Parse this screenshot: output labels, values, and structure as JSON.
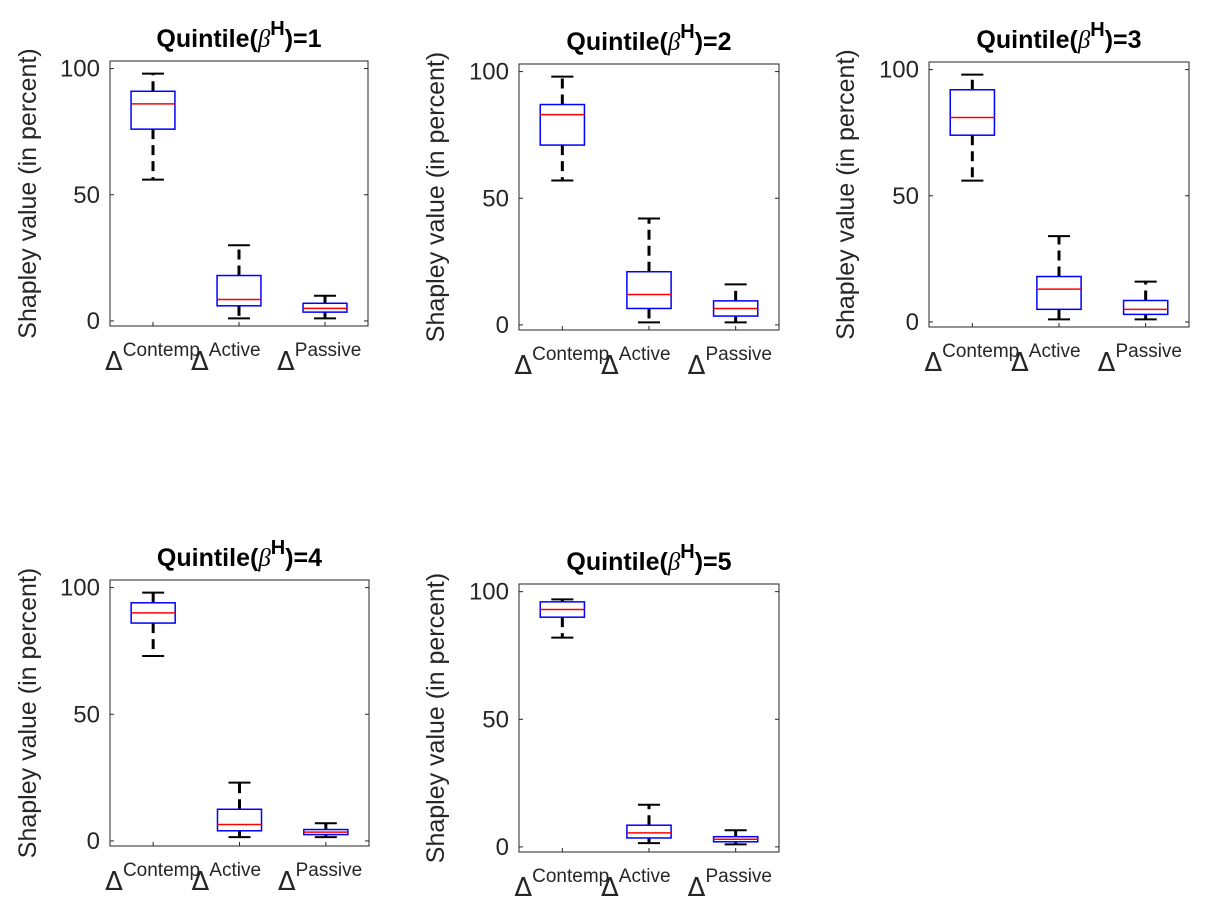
{
  "colors": {
    "box": "#0000ff",
    "median": "#ff0000",
    "whisker": "#000000",
    "axis": "#262626",
    "background": "#ffffff"
  },
  "chart_data": [
    {
      "type": "box",
      "title": {
        "prefix": "Quintile(",
        "symbol": "β",
        "superscript": "H",
        "suffix": ")=1"
      },
      "ylabel": "Shapley value (in percent)",
      "ylim": [
        -2,
        103
      ],
      "yticks": [
        "0",
        "50",
        "100"
      ],
      "categories": [
        {
          "symbol": "Δ",
          "label": "Contemp"
        },
        {
          "symbol": "Δ",
          "label": "Active"
        },
        {
          "symbol": "Δ",
          "label": "Passive"
        }
      ],
      "boxes": [
        {
          "whisker_low": 56,
          "q1": 76,
          "median": 86,
          "q3": 91,
          "whisker_high": 98
        },
        {
          "whisker_low": 1,
          "q1": 6,
          "median": 8.5,
          "q3": 18,
          "whisker_high": 30
        },
        {
          "whisker_low": 1,
          "q1": 3.5,
          "median": 5,
          "q3": 7,
          "whisker_high": 10
        }
      ]
    },
    {
      "type": "box",
      "title": {
        "prefix": "Quintile(",
        "symbol": "β",
        "superscript": "H",
        "suffix": ")=2"
      },
      "ylabel": "Shapley value (in percent)",
      "ylim": [
        -2,
        103
      ],
      "yticks": [
        "0",
        "50",
        "100"
      ],
      "categories": [
        {
          "symbol": "Δ",
          "label": "Contemp"
        },
        {
          "symbol": "Δ",
          "label": "Active"
        },
        {
          "symbol": "Δ",
          "label": "Passive"
        }
      ],
      "boxes": [
        {
          "whisker_low": 57,
          "q1": 71,
          "median": 83,
          "q3": 87,
          "whisker_high": 98
        },
        {
          "whisker_low": 1,
          "q1": 6.5,
          "median": 12,
          "q3": 21,
          "whisker_high": 42
        },
        {
          "whisker_low": 1,
          "q1": 3.5,
          "median": 6.5,
          "q3": 9.5,
          "whisker_high": 16
        }
      ]
    },
    {
      "type": "box",
      "title": {
        "prefix": "Quintile(",
        "symbol": "β",
        "superscript": "H",
        "suffix": ")=3"
      },
      "ylabel": "Shapley value (in percent)",
      "ylim": [
        -2,
        103
      ],
      "yticks": [
        "0",
        "50",
        "100"
      ],
      "categories": [
        {
          "symbol": "Δ",
          "label": "Contemp"
        },
        {
          "symbol": "Δ",
          "label": "Active"
        },
        {
          "symbol": "Δ",
          "label": "Passive"
        }
      ],
      "boxes": [
        {
          "whisker_low": 56,
          "q1": 74,
          "median": 81,
          "q3": 92,
          "whisker_high": 98
        },
        {
          "whisker_low": 1,
          "q1": 5,
          "median": 13,
          "q3": 18,
          "whisker_high": 34
        },
        {
          "whisker_low": 1,
          "q1": 3,
          "median": 5,
          "q3": 8.5,
          "whisker_high": 16
        }
      ]
    },
    {
      "type": "box",
      "title": {
        "prefix": "Quintile(",
        "symbol": "β",
        "superscript": "H",
        "suffix": ")=4"
      },
      "ylabel": "Shapley value (in percent)",
      "ylim": [
        -2,
        103
      ],
      "yticks": [
        "0",
        "50",
        "100"
      ],
      "categories": [
        {
          "symbol": "Δ",
          "label": "Contemp"
        },
        {
          "symbol": "Δ",
          "label": "Active"
        },
        {
          "symbol": "Δ",
          "label": "Passive"
        }
      ],
      "boxes": [
        {
          "whisker_low": 73,
          "q1": 86,
          "median": 90,
          "q3": 94,
          "whisker_high": 98
        },
        {
          "whisker_low": 1.5,
          "q1": 4,
          "median": 6.5,
          "q3": 12.5,
          "whisker_high": 23
        },
        {
          "whisker_low": 1.5,
          "q1": 2.5,
          "median": 3.5,
          "q3": 4.5,
          "whisker_high": 7
        }
      ]
    },
    {
      "type": "box",
      "title": {
        "prefix": "Quintile(",
        "symbol": "β",
        "superscript": "H",
        "suffix": ")=5"
      },
      "ylabel": "Shapley value (in percent)",
      "ylim": [
        -2,
        103
      ],
      "yticks": [
        "0",
        "50",
        "100"
      ],
      "categories": [
        {
          "symbol": "Δ",
          "label": "Contemp"
        },
        {
          "symbol": "Δ",
          "label": "Active"
        },
        {
          "symbol": "Δ",
          "label": "Passive"
        }
      ],
      "boxes": [
        {
          "whisker_low": 82,
          "q1": 90,
          "median": 93,
          "q3": 96,
          "whisker_high": 97
        },
        {
          "whisker_low": 1.5,
          "q1": 3.5,
          "median": 5.5,
          "q3": 8.5,
          "whisker_high": 16.5
        },
        {
          "whisker_low": 1,
          "q1": 2,
          "median": 3,
          "q3": 4,
          "whisker_high": 6.5
        }
      ]
    }
  ]
}
